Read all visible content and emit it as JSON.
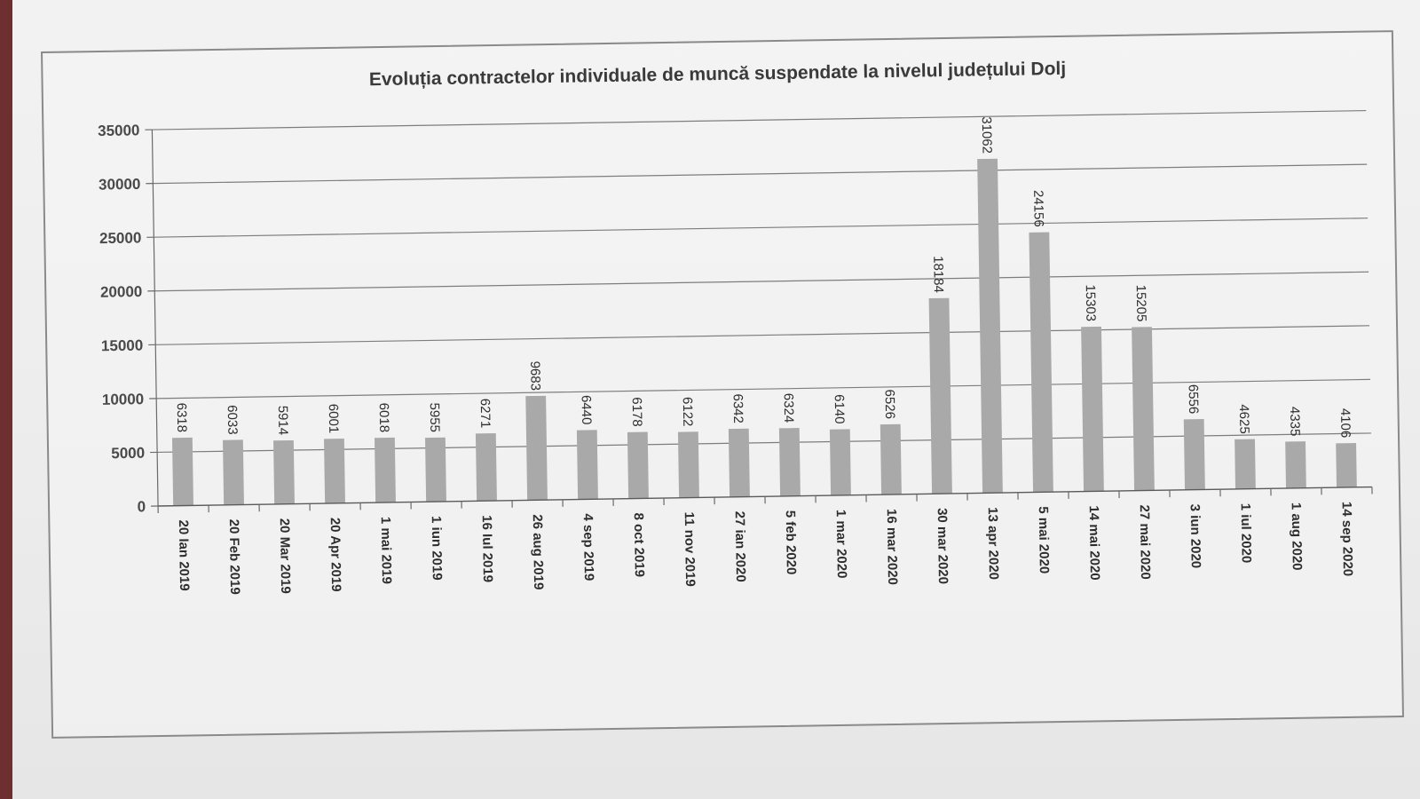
{
  "chart_data": {
    "type": "bar",
    "title": "Evoluția contractelor individuale de muncă suspendate la nivelul județului Dolj",
    "xlabel": "",
    "ylabel": "",
    "ylim": [
      0,
      35000
    ],
    "yticks": [
      0,
      5000,
      10000,
      15000,
      20000,
      25000,
      30000,
      35000
    ],
    "grid": true,
    "legend": "none",
    "bar_color": "#a9a9a9",
    "categories": [
      "20 Ian 2019",
      "20 Feb 2019",
      "20 Mar 2019",
      "20 Apr 2019",
      "1 mai 2019",
      "1 iun 2019",
      "16 Iul 2019",
      "26 aug 2019",
      "4 sep 2019",
      "8 oct 2019",
      "11 nov 2019",
      "27 ian 2020",
      "5 feb 2020",
      "1 mar 2020",
      "16 mar 2020",
      "30 mar 2020",
      "13 apr 2020",
      "5 mai 2020",
      "14 mai 2020",
      "27 mai 2020",
      "3 iun 2020",
      "1 iul 2020",
      "1 aug 2020",
      "14 sep 2020"
    ],
    "values": [
      6318,
      6033,
      5914,
      6001,
      6018,
      5955,
      6271,
      9683,
      6440,
      6178,
      6122,
      6342,
      6324,
      6140,
      6526,
      18184,
      31062,
      24156,
      15303,
      15205,
      6556,
      4625,
      4335,
      4106
    ]
  }
}
